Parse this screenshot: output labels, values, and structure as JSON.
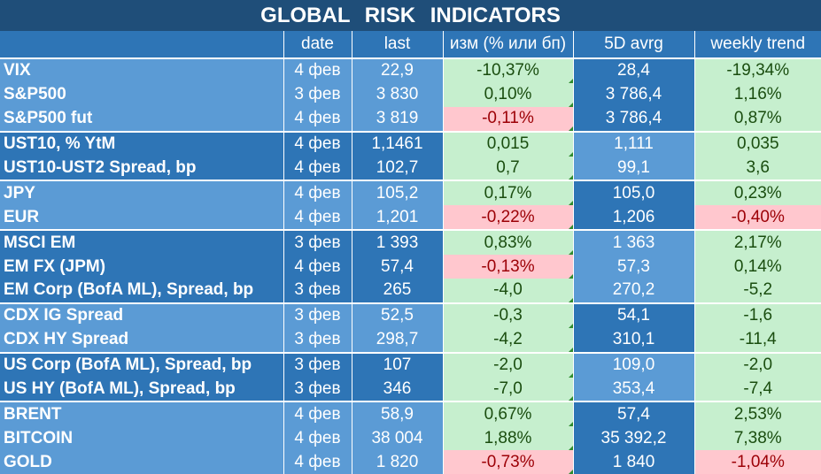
{
  "title": "GLOBAL   RISK   INDICATORS",
  "headers": [
    "",
    "date",
    "last",
    "изм (% или бп)",
    "5D avrg",
    "weekly trend"
  ],
  "colors": {
    "positive_bg": "#c6efce",
    "negative_bg": "#ffc7ce",
    "light_blue": "#5b9bd5",
    "dark_blue": "#2e75b6"
  },
  "rows": [
    {
      "name": "VIX",
      "date": "4 фев",
      "last": "22,9",
      "change": "-10,37%",
      "avg5d": "28,4",
      "weekly": "-19,34%",
      "change_sign": "pos",
      "weekly_sign": "pos",
      "group": "light",
      "group_start": true
    },
    {
      "name": "S&P500",
      "date": "3 фев",
      "last": "3 830",
      "change": "0,10%",
      "avg5d": "3 786,4",
      "weekly": "1,16%",
      "change_sign": "pos",
      "weekly_sign": "pos",
      "group": "light",
      "group_start": false
    },
    {
      "name": "S&P500 fut",
      "date": "4 фев",
      "last": "3 819",
      "change": "-0,11%",
      "avg5d": "3 786,4",
      "weekly": "0,87%",
      "change_sign": "neg",
      "weekly_sign": "pos",
      "group": "light",
      "group_start": false
    },
    {
      "name": "UST10, % YtM",
      "date": "4 фев",
      "last": "1,1461",
      "change": "0,015",
      "avg5d": "1,111",
      "weekly": "0,035",
      "change_sign": "pos",
      "weekly_sign": "pos",
      "group": "dark",
      "group_start": true
    },
    {
      "name": "UST10-UST2 Spread, bp",
      "date": "4 фев",
      "last": "102,7",
      "change": "0,7",
      "avg5d": "99,1",
      "weekly": "3,6",
      "change_sign": "pos",
      "weekly_sign": "pos",
      "group": "dark",
      "group_start": false
    },
    {
      "name": "JPY",
      "date": "4 фев",
      "last": "105,2",
      "change": "0,17%",
      "avg5d": "105,0",
      "weekly": "0,23%",
      "change_sign": "pos",
      "weekly_sign": "pos",
      "group": "light",
      "group_start": true
    },
    {
      "name": "EUR",
      "date": "4 фев",
      "last": "1,201",
      "change": "-0,22%",
      "avg5d": "1,206",
      "weekly": "-0,40%",
      "change_sign": "neg",
      "weekly_sign": "neg",
      "group": "light",
      "group_start": false
    },
    {
      "name": "MSCI EM",
      "date": "3 фев",
      "last": "1 393",
      "change": "0,83%",
      "avg5d": "1 363",
      "weekly": "2,17%",
      "change_sign": "pos",
      "weekly_sign": "pos",
      "group": "dark",
      "group_start": true
    },
    {
      "name": "EM FX (JPM)",
      "date": "4 фев",
      "last": "57,4",
      "change": "-0,13%",
      "avg5d": "57,3",
      "weekly": "0,14%",
      "change_sign": "neg",
      "weekly_sign": "pos",
      "group": "dark",
      "group_start": false
    },
    {
      "name": "EM Corp (BofA ML), Spread, bp",
      "date": "3 фев",
      "last": "265",
      "change": "-4,0",
      "avg5d": "270,2",
      "weekly": "-5,2",
      "change_sign": "pos",
      "weekly_sign": "pos",
      "group": "dark",
      "group_start": false
    },
    {
      "name": "CDX IG Spread",
      "date": "3 фев",
      "last": "52,5",
      "change": "-0,3",
      "avg5d": "54,1",
      "weekly": "-1,6",
      "change_sign": "pos",
      "weekly_sign": "pos",
      "group": "light",
      "group_start": true
    },
    {
      "name": "CDX HY Spread",
      "date": "3 фев",
      "last": "298,7",
      "change": "-4,2",
      "avg5d": "310,1",
      "weekly": "-11,4",
      "change_sign": "pos",
      "weekly_sign": "pos",
      "group": "light",
      "group_start": false
    },
    {
      "name": "US Corp (BofA ML), Spread, bp",
      "date": "3 фев",
      "last": "107",
      "change": "-2,0",
      "avg5d": "109,0",
      "weekly": "-2,0",
      "change_sign": "pos",
      "weekly_sign": "pos",
      "group": "dark",
      "group_start": true
    },
    {
      "name": "US HY (BofA ML), Spread, bp",
      "date": "3 фев",
      "last": "346",
      "change": "-7,0",
      "avg5d": "353,4",
      "weekly": "-7,4",
      "change_sign": "pos",
      "weekly_sign": "pos",
      "group": "dark",
      "group_start": false
    },
    {
      "name": "BRENT",
      "date": "4 фев",
      "last": "58,9",
      "change": "0,67%",
      "avg5d": "57,4",
      "weekly": "2,53%",
      "change_sign": "pos",
      "weekly_sign": "pos",
      "group": "light",
      "group_start": true
    },
    {
      "name": "BITCOIN",
      "date": "4 фев",
      "last": "38 004",
      "change": "1,88%",
      "avg5d": "35 392,2",
      "weekly": "7,38%",
      "change_sign": "pos",
      "weekly_sign": "pos",
      "group": "light",
      "group_start": false
    },
    {
      "name": "GOLD",
      "date": "4 фев",
      "last": "1 820",
      "change": "-0,73%",
      "avg5d": "1 840",
      "weekly": "-1,04%",
      "change_sign": "neg",
      "weekly_sign": "neg",
      "group": "light",
      "group_start": false
    }
  ]
}
